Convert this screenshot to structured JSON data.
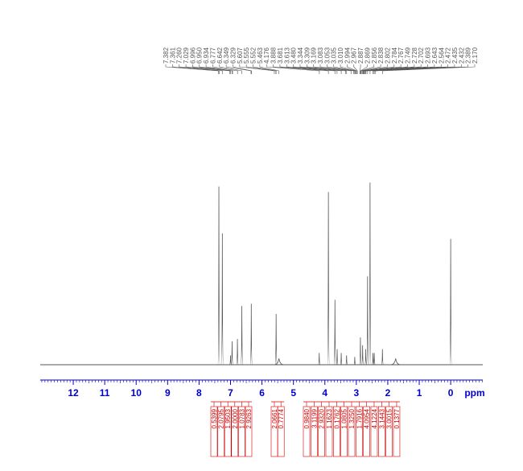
{
  "chart_data": {
    "type": "nmr",
    "xlabel": "ppm",
    "xlim": [
      13.05,
      -1.02
    ],
    "xticks": [
      12,
      11,
      10,
      9,
      8,
      7,
      6,
      5,
      4,
      3,
      2,
      1,
      0
    ],
    "ylim": [
      0,
      240
    ],
    "axis_color": "#0000cc",
    "integral_color": "#cc0000",
    "line_color": "#555555",
    "peak_picks": [
      7.382,
      7.361,
      7.26,
      7.029,
      6.996,
      6.95,
      6.934,
      6.777,
      6.642,
      6.349,
      6.329,
      5.607,
      5.555,
      5.552,
      5.463,
      4.176,
      3.888,
      3.681,
      3.613,
      3.48,
      3.344,
      3.309,
      3.169,
      3.083,
      3.053,
      3.035,
      3.01,
      2.994,
      2.967,
      2.887,
      2.869,
      2.856,
      2.838,
      2.802,
      2.784,
      2.767,
      2.749,
      2.728,
      2.702,
      2.693,
      2.643,
      2.564,
      2.472,
      2.435,
      2.432,
      2.389,
      2.17
    ],
    "peak_pick_labels": [
      "7.382",
      "7.361",
      "7.260",
      "7.029",
      "6.996",
      "6.950",
      "6.934",
      "6.777",
      "6.642",
      "6.349",
      "6.329",
      "5.607",
      "5.555",
      "5.552",
      "5.463",
      "4.176",
      "3.888",
      "3.681",
      "3.613",
      "3.480",
      "3.344",
      "3.309",
      "3.169",
      "3.083",
      "3.053",
      "3.035",
      "3.010",
      "2.994",
      "2.967",
      "2.887",
      "2.869",
      "2.856",
      "2.838",
      "2.802",
      "2.784",
      "2.767",
      "2.749",
      "2.728",
      "2.702",
      "2.693",
      "2.643",
      "2.564",
      "2.472",
      "2.435",
      "2.432",
      "2.389",
      "2.170"
    ],
    "peaks": {
      "x": [
        7.37,
        7.26,
        7.0,
        6.95,
        6.78,
        6.64,
        6.34,
        5.55,
        5.46,
        4.18,
        3.888,
        3.68,
        3.61,
        3.48,
        3.31,
        3.05,
        2.87,
        2.8,
        2.7,
        2.643,
        2.564,
        2.47,
        2.43,
        2.17,
        1.75,
        0
      ],
      "values": [
        228,
        168,
        12,
        30,
        33,
        75,
        78,
        65,
        8,
        15,
        221,
        83,
        20,
        15,
        12,
        10,
        35,
        25,
        20,
        113,
        233,
        15,
        15,
        20,
        8,
        161
      ]
    },
    "integrals": {
      "values": [
        0.5399,
        2.0795,
        1.9503,
        2.0,
        1.0783,
        2.9263,
        2.0661,
        0.7774,
        0.984,
        3.1199,
        2.932,
        1.1623,
        0.1762,
        1.0805,
        1.325,
        1.7916,
        4.0954,
        4.1224,
        3.1443,
        3.0015,
        0.1377
      ],
      "value_labels": [
        "0.5399",
        "2.0795",
        "1.9503",
        "2.0000",
        "1.0783",
        "2.9263",
        "2.0661",
        "0.7774",
        "0.9840",
        "3.1199",
        "2.9320",
        "1.1623",
        "0.1762",
        "1.0805",
        "1.3250",
        "1.7916",
        "4.0954",
        "4.1224",
        "3.1443",
        "3.0015",
        "0.1377"
      ]
    }
  }
}
